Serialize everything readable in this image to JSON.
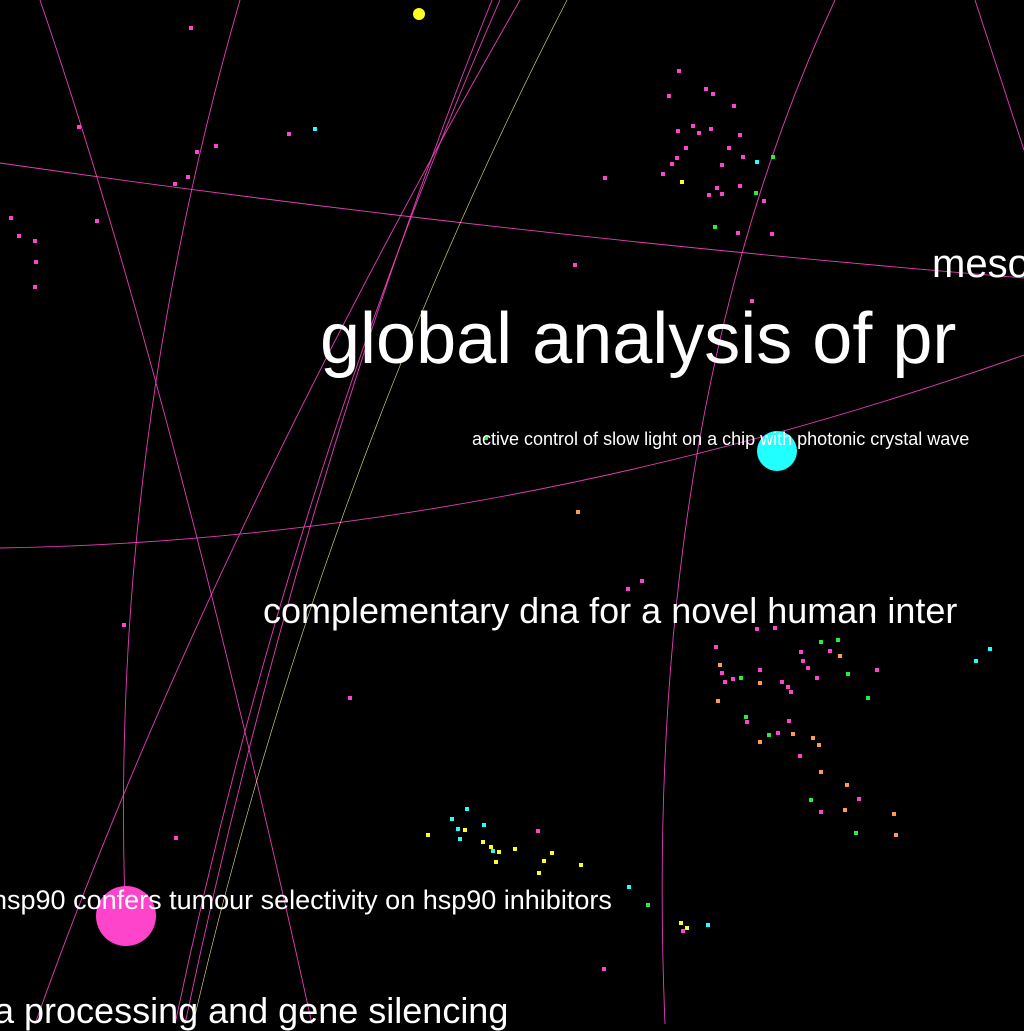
{
  "graph": {
    "background": "#000000",
    "edge_color": "#ff44cc",
    "edge_color_alt": "#ffff88",
    "colors": {
      "magenta": "#ff44cc",
      "cyan": "#22ffff",
      "yellow": "#ffff22",
      "green": "#22ee44",
      "orange": "#ff9955"
    },
    "labels": [
      {
        "id": "lbl-0",
        "text": "meso"
      },
      {
        "id": "lbl-1",
        "text": "global analysis of pr"
      },
      {
        "id": "lbl-2",
        "text": "active control of slow light on a chip with photonic crystal wave"
      },
      {
        "id": "lbl-3",
        "text": "complementary dna for a novel human inter"
      },
      {
        "id": "lbl-4",
        "text": "hsp90 confers tumour selectivity on hsp90 inhibitors"
      },
      {
        "id": "lbl-5",
        "text": "a processing and gene silencing"
      }
    ]
  }
}
